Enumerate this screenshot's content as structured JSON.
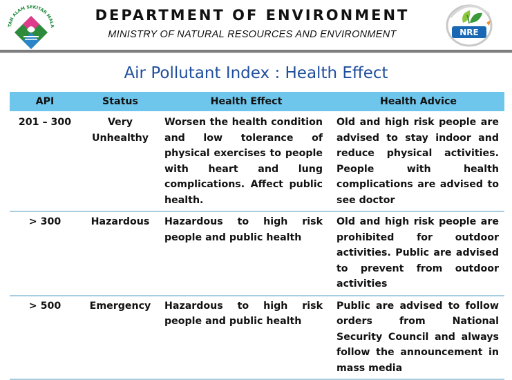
{
  "header": {
    "department": "DEPARTMENT OF ENVIRONMENT",
    "ministry": "MINISTRY OF NATURAL RESOURCES AND ENVIRONMENT",
    "left_logo_text": "JABATAN ALAM SEKITAR MALAYSIA",
    "right_logo_text": "NRE"
  },
  "title": "Air Pollutant Index : Health Effect",
  "table": {
    "headers": [
      "API",
      "Status",
      "Health Effect",
      "Health Advice"
    ],
    "rows": [
      {
        "api": "201 – 300",
        "status": "Very Unhealthy",
        "effect": "Worsen the health condition and low tolerance of physical exercises to people with heart and lung complications. Affect public health.",
        "advice": "Old and high risk people are advised to stay indoor and reduce physical activities. People with health complications are advised to see doctor"
      },
      {
        "api": "> 300",
        "status": "Hazardous",
        "effect": "Hazardous to high risk people and public health",
        "advice": "Old and high risk people are prohibited for outdoor activities. Public are advised to prevent from outdoor activities"
      },
      {
        "api": "> 500",
        "status": "Emergency",
        "effect": "Hazardous to high risk people and public health",
        "advice": "Public are advised to follow orders from National Security Council and always follow the announcement in mass media"
      }
    ]
  },
  "colors": {
    "header_band": "#6fc6ec",
    "title": "#1f4e9c",
    "rule": "#7d7d7d",
    "row_border": "#a9cde0"
  }
}
